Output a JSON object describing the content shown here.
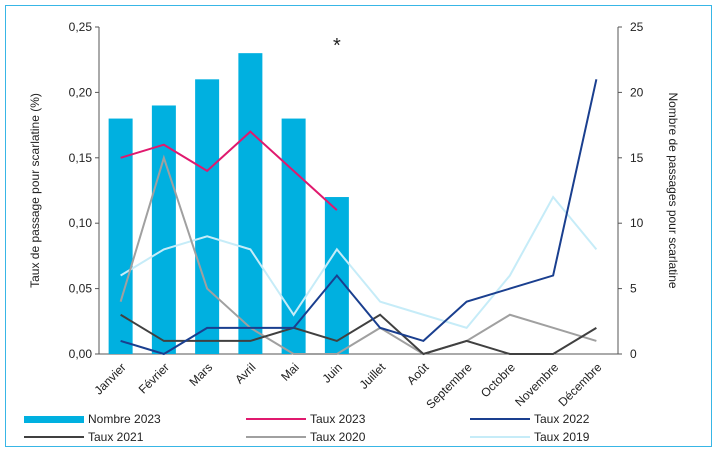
{
  "chart_data": {
    "type": "bar",
    "categories": [
      "Janvier",
      "Février",
      "Mars",
      "Avril",
      "Mai",
      "Juin",
      "Juillet",
      "Août",
      "Septembre",
      "Octobre",
      "Novembre",
      "Décembre"
    ],
    "annotation": "*",
    "y_left": {
      "label": "Taux de passage pour scarlatine (%)",
      "range": [
        0,
        0.25
      ],
      "ticks": [
        "0,00",
        "0,05",
        "0,10",
        "0,15",
        "0,20",
        "0,25"
      ]
    },
    "y_right": {
      "label": "Nombre de passages pour scarlatine",
      "range": [
        0,
        25
      ],
      "ticks": [
        "0",
        "5",
        "10",
        "15",
        "20",
        "25"
      ]
    },
    "bars": {
      "name": "Nombre 2023",
      "axis": "right",
      "color": "#00b0e0",
      "values": [
        18,
        19,
        21,
        23,
        18,
        12
      ]
    },
    "lines": [
      {
        "name": "Taux 2023",
        "color": "#e0196e",
        "values": [
          0.15,
          0.16,
          0.14,
          0.17,
          0.14,
          0.11
        ]
      },
      {
        "name": "Taux 2022",
        "color": "#1a3f8f",
        "values": [
          0.01,
          0.0,
          0.02,
          0.02,
          0.02,
          0.06,
          0.02,
          0.01,
          0.04,
          0.05,
          0.06,
          0.21
        ]
      },
      {
        "name": "Taux 2021",
        "color": "#404040",
        "values": [
          0.03,
          0.01,
          0.01,
          0.01,
          0.02,
          0.01,
          0.03,
          0.0,
          0.01,
          0.0,
          0.0,
          0.02
        ]
      },
      {
        "name": "Taux 2020",
        "color": "#a0a0a0",
        "values": [
          0.04,
          0.15,
          0.05,
          0.02,
          0.0,
          0.0,
          0.02,
          0.0,
          0.01,
          0.03,
          0.02,
          0.01
        ]
      },
      {
        "name": "Taux 2019",
        "color": "#c6ecf8",
        "values": [
          0.06,
          0.08,
          0.09,
          0.08,
          0.03,
          0.08,
          0.04,
          0.03,
          0.02,
          0.06,
          0.12,
          0.08
        ]
      }
    ],
    "legend": [
      {
        "name": "Nombre 2023",
        "kind": "bar",
        "color": "#00b0e0"
      },
      {
        "name": "Taux 2023",
        "kind": "line",
        "color": "#e0196e"
      },
      {
        "name": "Taux 2022",
        "kind": "line",
        "color": "#1a3f8f"
      },
      {
        "name": "Taux 2021",
        "kind": "line",
        "color": "#404040"
      },
      {
        "name": "Taux 2020",
        "kind": "line",
        "color": "#a0a0a0"
      },
      {
        "name": "Taux 2019",
        "kind": "line",
        "color": "#c6ecf8"
      }
    ]
  }
}
